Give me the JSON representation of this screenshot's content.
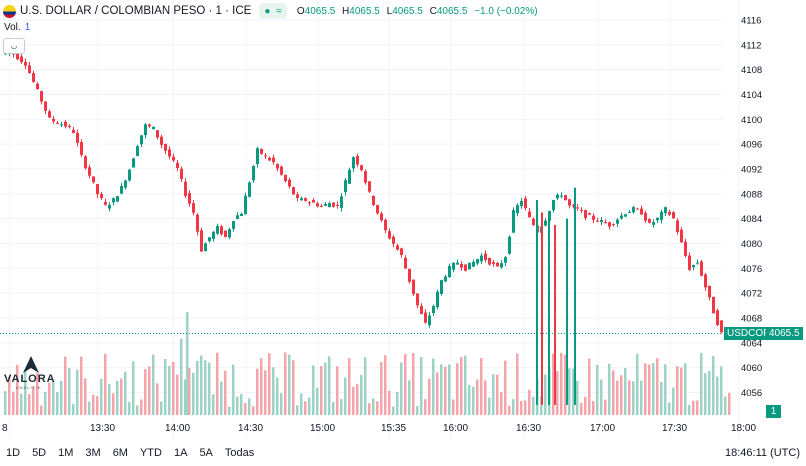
{
  "header": {
    "symbol_title": "U.S. DOLLAR / COLOMBIAN PESO · 1 · ICE",
    "pill_dot": "●",
    "pill_icon": "≈",
    "ohlc": [
      {
        "k": "O",
        "v": "4065.5"
      },
      {
        "k": "H",
        "v": "4065.5"
      },
      {
        "k": "L",
        "v": "4065.5"
      },
      {
        "k": "C",
        "v": "4065.5"
      }
    ],
    "change": "−1.0 (−0.02%)"
  },
  "volume_label": "Vol.",
  "volume_value": "1",
  "last_volume_badge": "1",
  "price_tag": {
    "symbol": "USDCOP",
    "value": "4065.5"
  },
  "logo": {
    "word": "VALORA",
    "sub": "ANALITIK"
  },
  "ranges": [
    "1D",
    "5D",
    "1M",
    "3M",
    "6M",
    "YTD",
    "1A",
    "5A",
    "Todas"
  ],
  "clock": "18:46:11 (UTC)",
  "colors": {
    "up": "#089981",
    "down": "#f23645",
    "up_vol": "#9dd2c5",
    "down_vol": "#f5a5aa",
    "grid": "#f0f3fa"
  },
  "chart_data": {
    "type": "candlestick",
    "title": "U.S. DOLLAR / COLOMBIAN PESO · 1 · ICE",
    "x_axis_labels": [
      "8",
      "13:30",
      "14:00",
      "14:30",
      "15:00",
      "15:35",
      "16:00",
      "16:30",
      "17:00",
      "17:30",
      "18:00"
    ],
    "y_axis_labels": [
      4116,
      4112,
      4108,
      4104,
      4100,
      4096,
      4092,
      4088,
      4084,
      4080,
      4076,
      4072,
      4068,
      4064,
      4060,
      4056
    ],
    "y_range": [
      4052,
      4118
    ],
    "last_price": 4065.5,
    "price_path": [
      [
        0,
        4110.5
      ],
      [
        2,
        4111
      ],
      [
        4,
        4110
      ],
      [
        6,
        4109
      ],
      [
        8,
        4106
      ],
      [
        10,
        4103
      ],
      [
        12,
        4100
      ],
      [
        14,
        4099.5
      ],
      [
        16,
        4099
      ],
      [
        18,
        4098
      ],
      [
        20,
        4094
      ],
      [
        22,
        4091
      ],
      [
        24,
        4088
      ],
      [
        26,
        4086
      ],
      [
        28,
        4087
      ],
      [
        30,
        4089
      ],
      [
        32,
        4092
      ],
      [
        34,
        4096
      ],
      [
        36,
        4099
      ],
      [
        38,
        4098.5
      ],
      [
        40,
        4096
      ],
      [
        42,
        4094
      ],
      [
        44,
        4092
      ],
      [
        46,
        4088
      ],
      [
        48,
        4085
      ],
      [
        50,
        4079
      ],
      [
        52,
        4081
      ],
      [
        54,
        4082.5
      ],
      [
        56,
        4081
      ],
      [
        58,
        4084
      ],
      [
        60,
        4085
      ],
      [
        62,
        4090
      ],
      [
        64,
        4095
      ],
      [
        66,
        4094
      ],
      [
        68,
        4093
      ],
      [
        70,
        4091
      ],
      [
        72,
        4089
      ],
      [
        74,
        4087
      ],
      [
        76,
        4087
      ],
      [
        78,
        4086.5
      ],
      [
        80,
        4086
      ],
      [
        82,
        4086.5
      ],
      [
        84,
        4086
      ],
      [
        86,
        4090
      ],
      [
        88,
        4094
      ],
      [
        90,
        4092
      ],
      [
        92,
        4088
      ],
      [
        94,
        4085
      ],
      [
        96,
        4082
      ],
      [
        98,
        4080
      ],
      [
        100,
        4078
      ],
      [
        102,
        4074
      ],
      [
        104,
        4070
      ],
      [
        106,
        4067
      ],
      [
        108,
        4070
      ],
      [
        110,
        4074
      ],
      [
        112,
        4076
      ],
      [
        114,
        4077
      ],
      [
        116,
        4076
      ],
      [
        118,
        4077
      ],
      [
        120,
        4078
      ],
      [
        122,
        4077
      ],
      [
        124,
        4076
      ],
      [
        126,
        4078
      ],
      [
        128,
        4085
      ],
      [
        130,
        4087
      ],
      [
        132,
        4084
      ],
      [
        134,
        4082
      ],
      [
        136,
        4084
      ],
      [
        138,
        4087
      ],
      [
        140,
        4088
      ],
      [
        142,
        4086
      ],
      [
        144,
        4085.5
      ],
      [
        146,
        4084.5
      ],
      [
        148,
        4084
      ],
      [
        150,
        4083.5
      ],
      [
        152,
        4083
      ],
      [
        154,
        4084
      ],
      [
        156,
        4085
      ],
      [
        158,
        4085.5
      ],
      [
        160,
        4085
      ],
      [
        162,
        4083
      ],
      [
        164,
        4084
      ],
      [
        166,
        4085.5
      ],
      [
        168,
        4084
      ],
      [
        170,
        4080
      ],
      [
        172,
        4076
      ],
      [
        174,
        4077
      ],
      [
        178,
        4069
      ],
      [
        180,
        4065.5
      ]
    ],
    "volume_range": [
      0,
      40
    ]
  }
}
